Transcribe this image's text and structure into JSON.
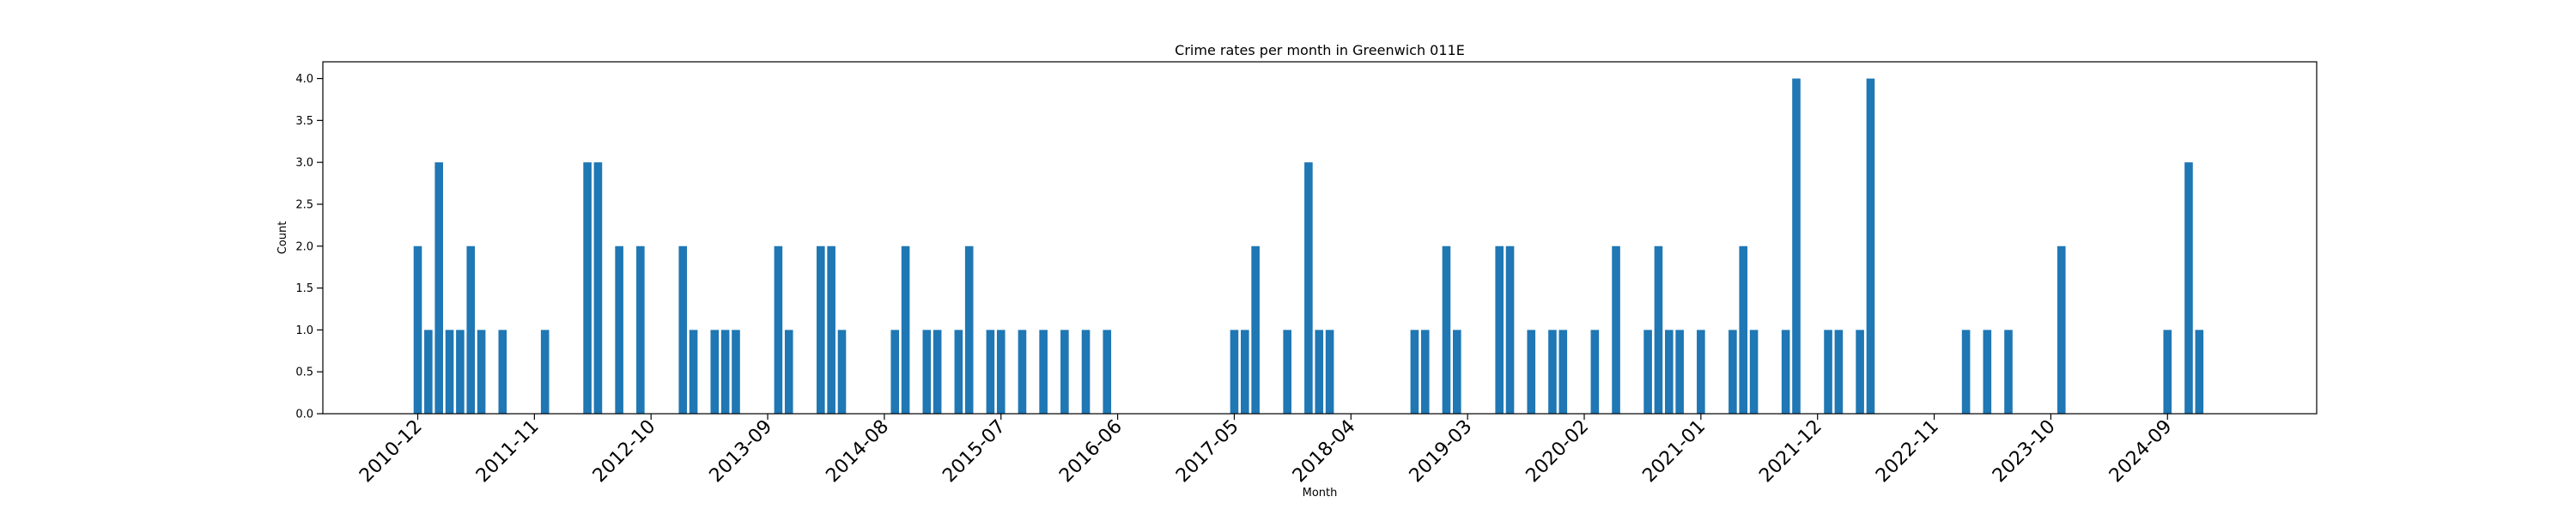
{
  "chart_data": {
    "type": "bar",
    "title": "Crime rates per month in Greenwich 011E",
    "xlabel": "Month",
    "ylabel": "Count",
    "ylim": [
      0,
      4.2
    ],
    "yticks": [
      0.0,
      0.5,
      1.0,
      1.5,
      2.0,
      2.5,
      3.0,
      3.5,
      4.0
    ],
    "ytick_labels": [
      "0.0",
      "0.5",
      "1.0",
      "1.5",
      "2.0",
      "2.5",
      "3.0",
      "3.5",
      "4.0"
    ],
    "xtick_labels": [
      "2010-12",
      "2011-11",
      "2012-10",
      "2013-09",
      "2014-08",
      "2015-07",
      "2016-06",
      "2017-05",
      "2018-04",
      "2019-03",
      "2020-02",
      "2021-01",
      "2021-12",
      "2022-11",
      "2023-10",
      "2024-09"
    ],
    "bar_color": "#1f77b4",
    "grid": false,
    "categories": [
      "2010-12",
      "2011-01",
      "2011-02",
      "2011-03",
      "2011-04",
      "2011-05",
      "2011-06",
      "2011-08",
      "2011-12",
      "2012-04",
      "2012-05",
      "2012-07",
      "2012-09",
      "2013-01",
      "2013-02",
      "2013-04",
      "2013-05",
      "2013-06",
      "2013-10",
      "2013-11",
      "2014-02",
      "2014-03",
      "2014-04",
      "2014-09",
      "2014-10",
      "2014-12",
      "2015-01",
      "2015-03",
      "2015-04",
      "2015-06",
      "2015-07",
      "2015-09",
      "2015-11",
      "2016-01",
      "2016-03",
      "2016-05",
      "2017-05",
      "2017-06",
      "2017-07",
      "2017-10",
      "2017-12",
      "2018-01",
      "2018-02",
      "2018-10",
      "2018-11",
      "2019-01",
      "2019-02",
      "2019-06",
      "2019-07",
      "2019-09",
      "2019-11",
      "2019-12",
      "2020-03",
      "2020-05",
      "2020-08",
      "2020-09",
      "2020-10",
      "2020-11",
      "2021-01",
      "2021-04",
      "2021-05",
      "2021-06",
      "2021-09",
      "2021-10",
      "2022-01",
      "2022-02",
      "2022-04",
      "2022-05",
      "2023-02",
      "2023-04",
      "2023-06",
      "2023-11",
      "2024-09",
      "2024-11",
      "2024-12"
    ],
    "values": [
      2,
      1,
      3,
      1,
      1,
      2,
      1,
      1,
      1,
      3,
      3,
      2,
      2,
      2,
      1,
      1,
      1,
      1,
      2,
      1,
      2,
      2,
      1,
      1,
      2,
      1,
      1,
      1,
      2,
      1,
      1,
      1,
      1,
      1,
      1,
      1,
      1,
      1,
      2,
      1,
      3,
      1,
      1,
      1,
      1,
      2,
      1,
      2,
      2,
      1,
      1,
      1,
      1,
      2,
      1,
      2,
      1,
      1,
      1,
      1,
      2,
      1,
      1,
      4,
      1,
      1,
      1,
      4,
      1,
      1,
      1,
      2,
      1,
      3,
      1
    ]
  }
}
